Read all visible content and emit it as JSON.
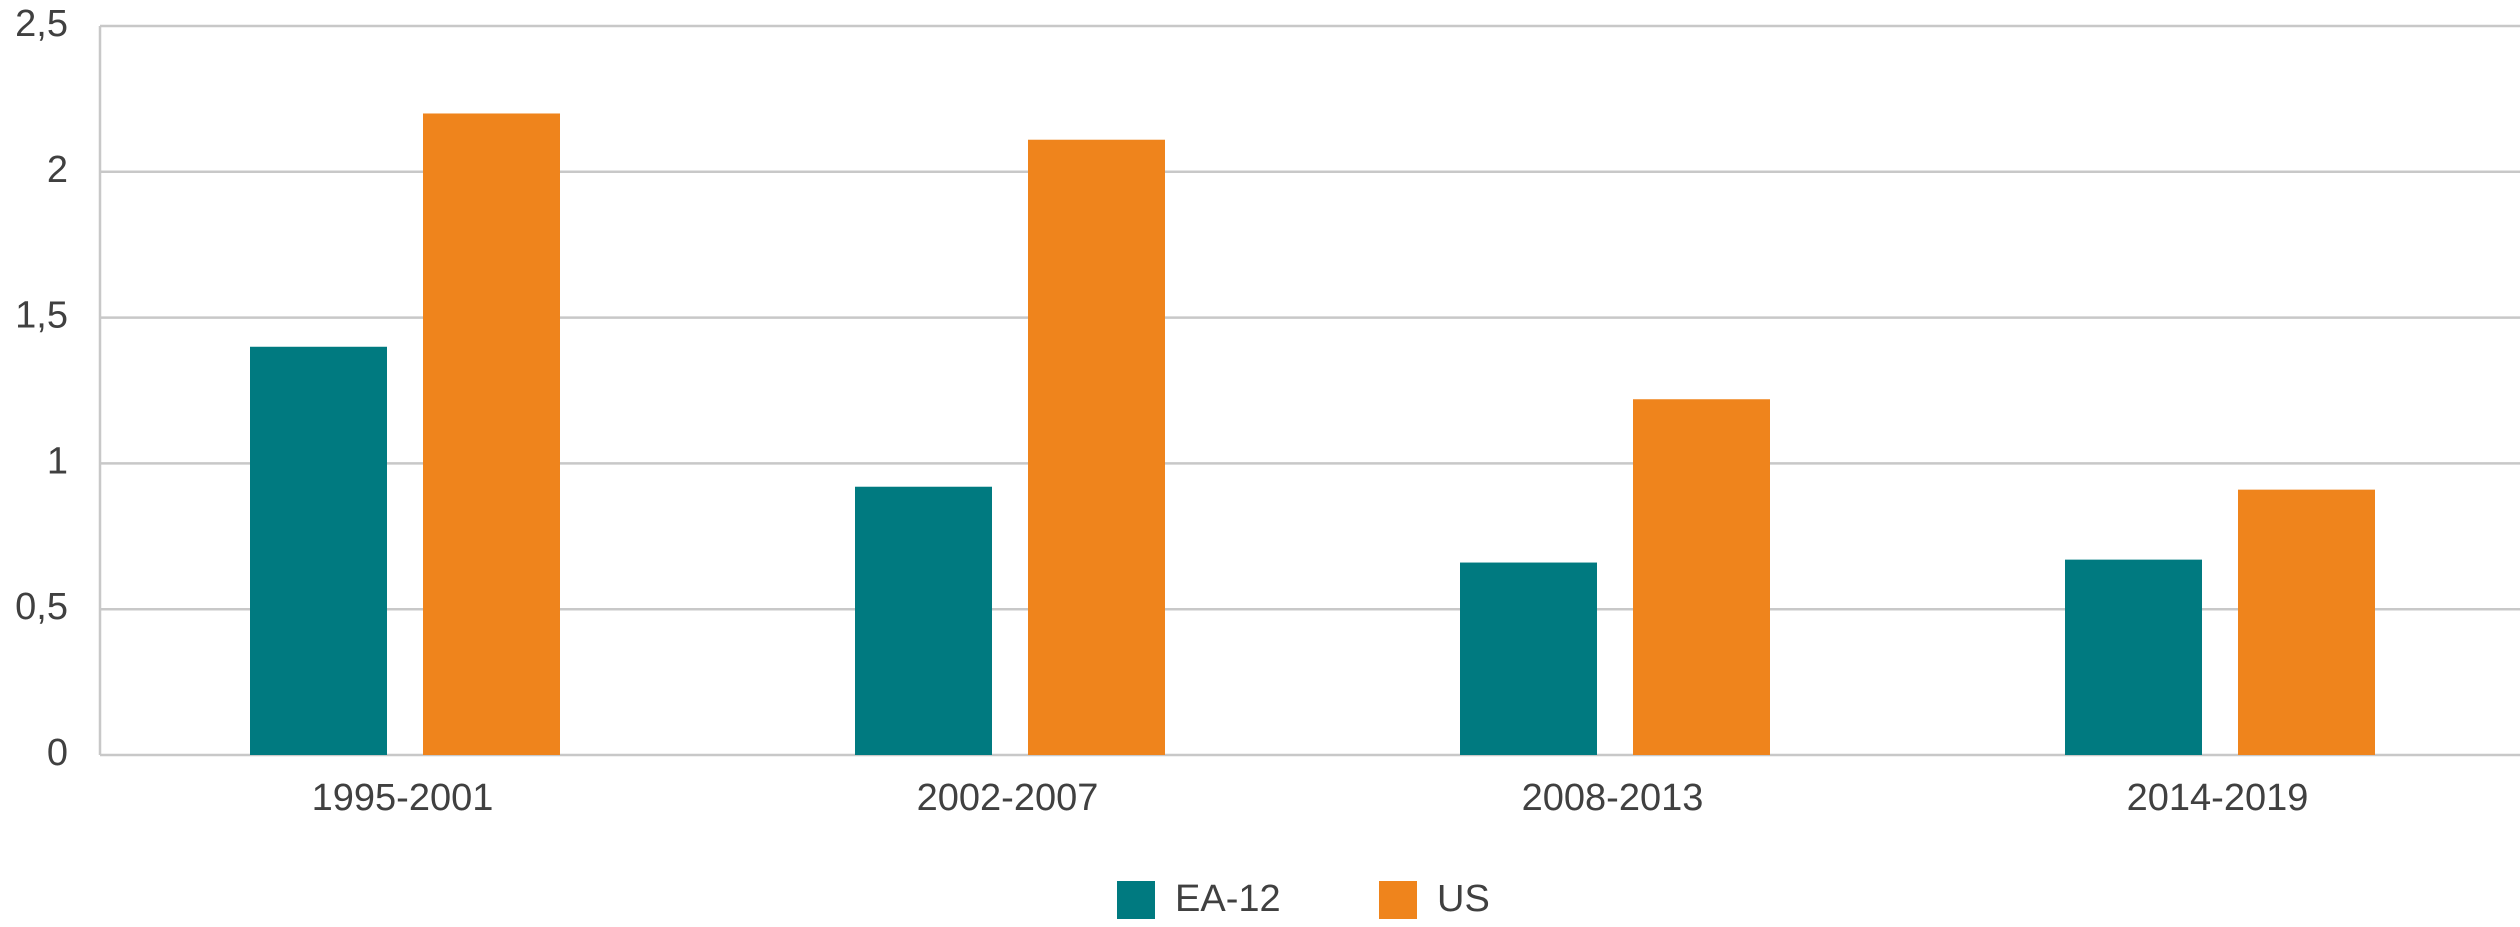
{
  "chart_data": {
    "type": "bar",
    "categories": [
      "1995-2001",
      "2002-2007",
      "2008-2013",
      "2014-2019"
    ],
    "series": [
      {
        "name": "EA-12",
        "color": "#007a80",
        "values": [
          1.4,
          0.92,
          0.66,
          0.67
        ]
      },
      {
        "name": "US",
        "color": "#ef841c",
        "values": [
          2.2,
          2.11,
          1.22,
          0.91
        ]
      }
    ],
    "ylim": [
      0,
      2.5
    ],
    "yticks": [
      0,
      {
        "value": 0.5,
        "label": "0,5"
      },
      1,
      {
        "value": 1.5,
        "label": "1,5"
      },
      2,
      {
        "value": 2.5,
        "label": "2,5"
      }
    ],
    "grid": true,
    "legend": "bottom"
  }
}
